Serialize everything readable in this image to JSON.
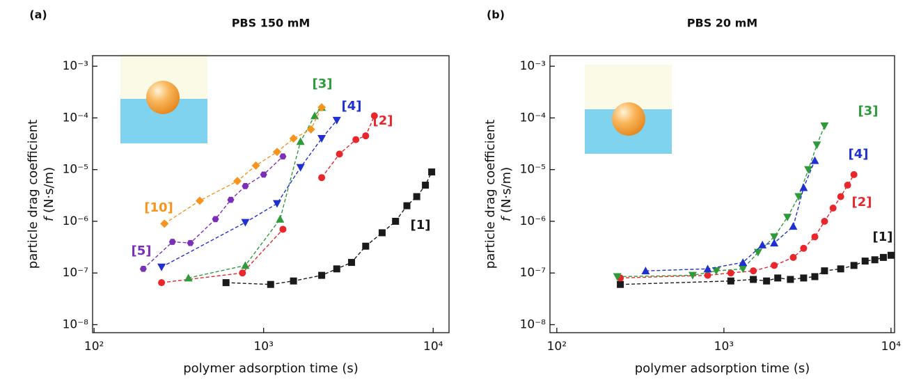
{
  "chart_data": [
    {
      "type": "line",
      "panel": "(a)",
      "title": "PBS 150 mM",
      "xlabel": "polymer adsorption time (s)",
      "ylabel": "particle drag coefficient",
      "ylabel_var": "f",
      "ylabel_unit": "(N·s/m)",
      "xscale": "log",
      "yscale": "log",
      "linestyle": "dashed",
      "xlim": [
        98,
        12400
      ],
      "ylim": [
        7e-09,
        0.0016
      ],
      "xticks": [
        {
          "value": 100,
          "label": "10²"
        },
        {
          "value": 1000,
          "label": "10³"
        },
        {
          "value": 10000,
          "label": "10⁴"
        }
      ],
      "yticks": [
        {
          "value": 1e-08,
          "label": "10⁻⁸"
        },
        {
          "value": 1e-07,
          "label": "10⁻⁷"
        },
        {
          "value": 1e-06,
          "label": "10⁻⁶"
        },
        {
          "value": 1e-05,
          "label": "10⁻⁵"
        },
        {
          "value": 0.0001,
          "label": "10⁻⁴"
        },
        {
          "value": 0.001,
          "label": "10⁻³"
        }
      ],
      "series": [
        {
          "name": "[1]",
          "color": "#1a1a1a",
          "marker": "square",
          "x": [
            600,
            1100,
            1500,
            2200,
            2700,
            3300,
            4000,
            5000,
            6000,
            7000,
            8000,
            9000,
            9800
          ],
          "y": [
            6.5e-08,
            6e-08,
            7e-08,
            9e-08,
            1.2e-07,
            1.6e-07,
            3.3e-07,
            6e-07,
            1e-06,
            2e-06,
            3e-06,
            5e-06,
            9e-06
          ]
        },
        {
          "name": "[2]",
          "color": "#e8262b",
          "marker": "circle",
          "x": [
            250,
            750,
            1300,
            1700,
            2200,
            2800,
            3500,
            4000,
            4500
          ],
          "y": [
            6.5e-08,
            1e-07,
            7e-07,
            null,
            7e-06,
            2e-05,
            3.8e-05,
            4.5e-05,
            0.00011
          ]
        },
        {
          "name": "[3]",
          "color": "#2e9a3a",
          "marker": "triangle-up",
          "x": [
            360,
            780,
            1250,
            1650,
            2000,
            2200
          ],
          "y": [
            8e-08,
            1.4e-07,
            1.1e-06,
            3.5e-05,
            0.00011,
            0.00016
          ]
        },
        {
          "name": "[4]",
          "color": "#2030d0",
          "marker": "triangle-down",
          "x": [
            250,
            780,
            1200,
            1650,
            2200,
            2700
          ],
          "y": [
            1.3e-07,
            9.5e-07,
            2.2e-06,
            1.1e-05,
            4e-05,
            9e-05
          ]
        },
        {
          "name": "[5]",
          "color": "#7b2fb9",
          "marker": "hexagon",
          "x": [
            195,
            290,
            370,
            520,
            640,
            780,
            1000,
            1300
          ],
          "y": [
            1.2e-07,
            4e-07,
            3.8e-07,
            1.1e-06,
            2.6e-06,
            4.8e-06,
            8e-06,
            1.8e-05
          ]
        },
        {
          "name": "[10]",
          "color": "#f7941d",
          "marker": "diamond",
          "x": [
            260,
            420,
            700,
            900,
            1200,
            1500,
            1900,
            2200
          ],
          "y": [
            9e-07,
            2.5e-06,
            6e-06,
            1.2e-05,
            2.2e-05,
            4e-05,
            6e-05,
            0.00016
          ]
        }
      ]
    },
    {
      "type": "line",
      "panel": "(b)",
      "title": "PBS 20 mM",
      "xlabel": "polymer adsorption time (s)",
      "ylabel": "particle drag coefficient",
      "ylabel_var": "f",
      "ylabel_unit": "(N·s/m)",
      "xscale": "log",
      "yscale": "log",
      "linestyle": "dashed",
      "xlim": [
        91,
        10500
      ],
      "ylim": [
        7e-09,
        0.0016
      ],
      "xticks": [
        {
          "value": 100,
          "label": "10²"
        },
        {
          "value": 1000,
          "label": "10³"
        },
        {
          "value": 10000,
          "label": "10⁴"
        }
      ],
      "yticks": [
        {
          "value": 1e-08,
          "label": "10⁻⁸"
        },
        {
          "value": 1e-07,
          "label": "10⁻⁷"
        },
        {
          "value": 1e-06,
          "label": "10⁻⁶"
        },
        {
          "value": 1e-05,
          "label": "10⁻⁵"
        },
        {
          "value": 0.0001,
          "label": "10⁻⁴"
        },
        {
          "value": 0.001,
          "label": "10⁻³"
        }
      ],
      "series": [
        {
          "name": "[1]",
          "color": "#1a1a1a",
          "marker": "square",
          "x": [
            240,
            1100,
            1500,
            1800,
            2100,
            2500,
            3000,
            3500,
            4000,
            5000,
            6000,
            7000,
            8000,
            9000,
            10000
          ],
          "y": [
            6e-08,
            7e-08,
            7.5e-08,
            7e-08,
            8e-08,
            7.5e-08,
            8e-08,
            8.5e-08,
            1.1e-07,
            1.2e-07,
            1.4e-07,
            1.7e-07,
            1.8e-07,
            2e-07,
            2.2e-07
          ]
        },
        {
          "name": "[2]",
          "color": "#e8262b",
          "marker": "circle",
          "x": [
            240,
            800,
            1100,
            1500,
            2000,
            2600,
            3000,
            3500,
            4000,
            4500,
            5000,
            5500,
            6000
          ],
          "y": [
            8e-08,
            9e-08,
            1e-07,
            1.1e-07,
            1.4e-07,
            2e-07,
            3e-07,
            5e-07,
            1e-06,
            1.8e-06,
            3e-06,
            5e-06,
            8e-06
          ]
        },
        {
          "name": "[3]",
          "color": "#2e9a3a",
          "marker": "triangle-down",
          "x": [
            230,
            650,
            900,
            1300,
            1600,
            2000,
            2400,
            2800,
            3200,
            3600,
            4000
          ],
          "y": [
            8.5e-08,
            9e-08,
            1.1e-07,
            1.2e-07,
            2.5e-07,
            5e-07,
            1.2e-06,
            3e-06,
            1e-05,
            3e-05,
            7e-05
          ]
        },
        {
          "name": "[4]",
          "color": "#2030d0",
          "marker": "triangle-up",
          "x": [
            340,
            800,
            1300,
            1700,
            2000,
            2600,
            3000,
            3500
          ],
          "y": [
            1.1e-07,
            1.2e-07,
            1.6e-07,
            3.5e-07,
            3.8e-07,
            8e-07,
            4.5e-06,
            1.5e-05
          ]
        }
      ]
    }
  ]
}
